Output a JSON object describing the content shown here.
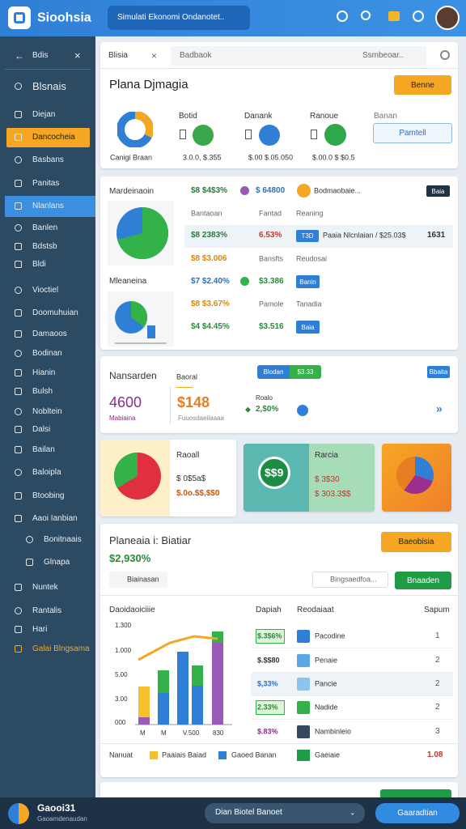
{
  "header": {
    "logo": "Sioohsia",
    "search": "Simulati Ekonomi Ondanotet.."
  },
  "sidebar": {
    "title": "Bdis",
    "items": [
      "Blsnais",
      "Diejan",
      "Dancocheia",
      "Basbans",
      "Panitas",
      "Nlanlans",
      "Banlen",
      "Bdstsb",
      "Bldi",
      "Vioctiel",
      "Doomuhuian",
      "Damaoos",
      "Bodinan",
      "Hianin",
      "Bulsh",
      "Nobltein",
      "Dalsi",
      "Bailan",
      "Baloipla",
      "Btoobing",
      "Aaoi Ianbian",
      "Bonitnaais",
      "Glnapa",
      "Nuntek",
      "Rantalis",
      "Hari",
      "Galai Blngsama"
    ]
  },
  "overview": {
    "tab": "Blisia",
    "search": "Badbaok",
    "search_hint": "Ssmbeoar..",
    "title": "Plana Djmagia",
    "button": "Benne",
    "donut_label": "Canigi Braan",
    "stats": [
      {
        "label": "Botid",
        "value": "3.0.0, $.355"
      },
      {
        "label": "Danank",
        "value": "$.00 $.05.050"
      },
      {
        "label": "Ranoue",
        "value": "$.00.0 $ $0.5"
      }
    ],
    "last_label": "Banan",
    "last_button": "Pamtell"
  },
  "market": {
    "title": "Mardeinaoin",
    "subtitle": "Mleaneina",
    "badge": "Baia",
    "top": [
      "$8 $4$3%",
      "$ 64800",
      "Bodmaobaie..."
    ],
    "columns": [
      "Bantaoan",
      "Fantad",
      "Reaning"
    ],
    "rows": [
      [
        "$8 2383%",
        "6.53%",
        "T3D",
        "Paaia Nlcnlaian / $25.03$",
        "1631"
      ],
      [
        "$8 $3.006",
        "Bansfts",
        "Reudosai"
      ],
      [
        "$7 $2.40%",
        "$3.386",
        "Banin"
      ],
      [
        "$8 $3.67%",
        "Pamole",
        "Tanadia"
      ],
      [
        "$4 $4.45%",
        "$3.516",
        "Baia"
      ]
    ]
  },
  "summary": {
    "title": "Nansarden",
    "label": "Baoral",
    "count": "4600",
    "amount": "$148",
    "count_note": "Mabiaina",
    "amount_note": "Fuuosdaeilaaaa",
    "change_label": "Roalo",
    "change": "2,$0%",
    "toggle": [
      "Blodan",
      "$3.33"
    ],
    "badge": "Bbaita"
  },
  "cards": [
    {
      "title": "Raoall",
      "value": "$ 0$5a$",
      "note": "$.0o.$$,$$0"
    },
    {
      "badge": "$$9",
      "title": "Rarcia",
      "value": "$ 3$30",
      "note": "$ 303.3$$"
    }
  ],
  "report": {
    "title": "Planeaia i: Biatiar",
    "total": "$2,930%",
    "button": "Baeobisia",
    "search": "Biainasan",
    "search2": "Bingsaedfoa...",
    "button2": "Bnaaden",
    "chart_title": "Daoidaoiciiie",
    "y_labels": [
      "1.300",
      "1.000",
      "5.00",
      "3.00",
      "000"
    ],
    "x_labels": [
      "M",
      "M",
      "V.500",
      "830"
    ],
    "columns": [
      "Dapiah",
      "Reodaiaat",
      "Sapum"
    ],
    "rows": [
      [
        "$.3$6%",
        "Pacodine",
        1
      ],
      [
        "$.$$80",
        "Penaie",
        2
      ],
      [
        "$,33%",
        "Pancie",
        2
      ],
      [
        "2.33%",
        "Nadide",
        2
      ],
      [
        "$.83%",
        "Nambinleio",
        3
      ]
    ],
    "legend": [
      "Nanuat",
      "Paaiais Baiad",
      "Gaoed Banan",
      "Gaeiaie",
      "1.08"
    ]
  },
  "footer": {
    "name": "Gaooi31",
    "sub": "Gaoamdenaudan",
    "select": "Dian Biotel Banoet",
    "button": "Gaaradtian"
  }
}
